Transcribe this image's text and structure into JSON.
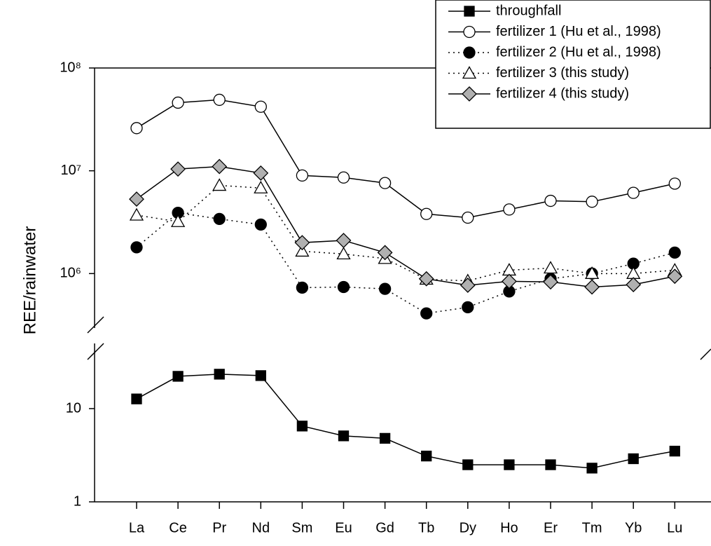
{
  "chart_data": [
    {
      "type": "line",
      "yscale": "log",
      "categories": [
        "La",
        "Ce",
        "Pr",
        "Nd",
        "Sm",
        "Eu",
        "Gd",
        "Tb",
        "Dy",
        "Ho",
        "Er",
        "Tm",
        "Yb",
        "Lu"
      ],
      "ylim": [
        1,
        50
      ],
      "yticks": [
        1,
        10
      ],
      "series": [
        {
          "name": "throughfall",
          "color": "#000000",
          "marker": "square",
          "marker_fill": "#000000",
          "dash": "solid",
          "values": [
            12.7,
            22.2,
            23.4,
            22.6,
            6.5,
            5.1,
            4.8,
            3.1,
            2.5,
            2.5,
            2.5,
            2.3,
            2.9,
            3.5
          ]
        }
      ]
    },
    {
      "type": "line",
      "yscale": "log",
      "ylabel": "REE/rainwater",
      "categories": [
        "La",
        "Ce",
        "Pr",
        "Nd",
        "Sm",
        "Eu",
        "Gd",
        "Tb",
        "Dy",
        "Ho",
        "Er",
        "Tm",
        "Yb",
        "Lu"
      ],
      "ylim": [
        300000,
        100000000
      ],
      "yticks": [
        {
          "value": 1000000,
          "label": "10⁶"
        },
        {
          "value": 10000000,
          "label": "10⁷"
        },
        {
          "value": 100000000,
          "label": "10⁸"
        }
      ],
      "series": [
        {
          "name": "fertilizer 1 (Hu et al., 1998)",
          "color": "#000000",
          "marker": "circle",
          "marker_fill": "#ffffff",
          "dash": "solid",
          "values": [
            26000000,
            46000000,
            49000000,
            42000000,
            9000000,
            8600000,
            7600000,
            3800000,
            3500000,
            4200000,
            5100000,
            5000000,
            6100000,
            7500000
          ]
        },
        {
          "name": "fertilizer 2 (Hu et al., 1998)",
          "color": "#000000",
          "marker": "circle",
          "marker_fill": "#000000",
          "dash": "dotted",
          "values": [
            1800000,
            3900000,
            3400000,
            3000000,
            730000,
            740000,
            710000,
            410000,
            470000,
            670000,
            890000,
            1000000,
            1250000,
            1600000
          ]
        },
        {
          "name": "fertilizer 3 (this study)",
          "color": "#000000",
          "marker": "triangle",
          "marker_fill": "#ffffff",
          "dash": "dotted",
          "values": [
            3700000,
            3200000,
            7200000,
            6800000,
            1650000,
            1550000,
            1400000,
            880000,
            850000,
            1080000,
            1130000,
            1000000,
            1000000,
            1080000
          ]
        },
        {
          "name": "fertilizer 4 (this study)",
          "color": "#000000",
          "marker": "diamond",
          "marker_fill": "#b0b0b0",
          "dash": "solid",
          "values": [
            5300000,
            10400000,
            11000000,
            9500000,
            2000000,
            2100000,
            1600000,
            890000,
            770000,
            840000,
            830000,
            740000,
            780000,
            940000
          ]
        }
      ]
    }
  ]
}
